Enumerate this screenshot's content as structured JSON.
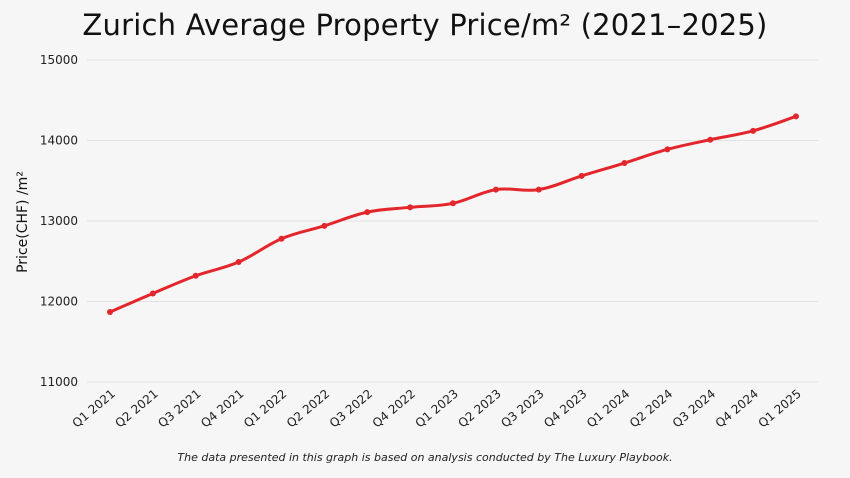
{
  "chart_data": {
    "type": "line",
    "title": "Zurich Average Property Price/m²  (2021–2025)",
    "xlabel": "",
    "ylabel": "Price(CHF) /m²",
    "ylim": [
      11000,
      15000
    ],
    "yticks": [
      11000,
      12000,
      13000,
      14000,
      15000
    ],
    "grid": "horizontal",
    "categories": [
      "Q1 2021",
      "Q2 2021",
      "Q3 2021",
      "Q4 2021",
      "Q1 2022",
      "Q2 2022",
      "Q3 2022",
      "Q4 2022",
      "Q1 2023",
      "Q2 2023",
      "Q3 2023",
      "Q4 2023",
      "Q1 2024",
      "Q2 2024",
      "Q3 2024",
      "Q4 2024",
      "Q1 2025"
    ],
    "series": [
      {
        "values": [
          11870,
          12100,
          12320,
          12490,
          12780,
          12940,
          13110,
          13170,
          13220,
          13390,
          13390,
          13560,
          13720,
          13890,
          14010,
          14120,
          14300
        ],
        "color": "#e3262b"
      }
    ]
  },
  "footnote": "The data presented in this graph is based on analysis conducted by The Luxury Playbook."
}
